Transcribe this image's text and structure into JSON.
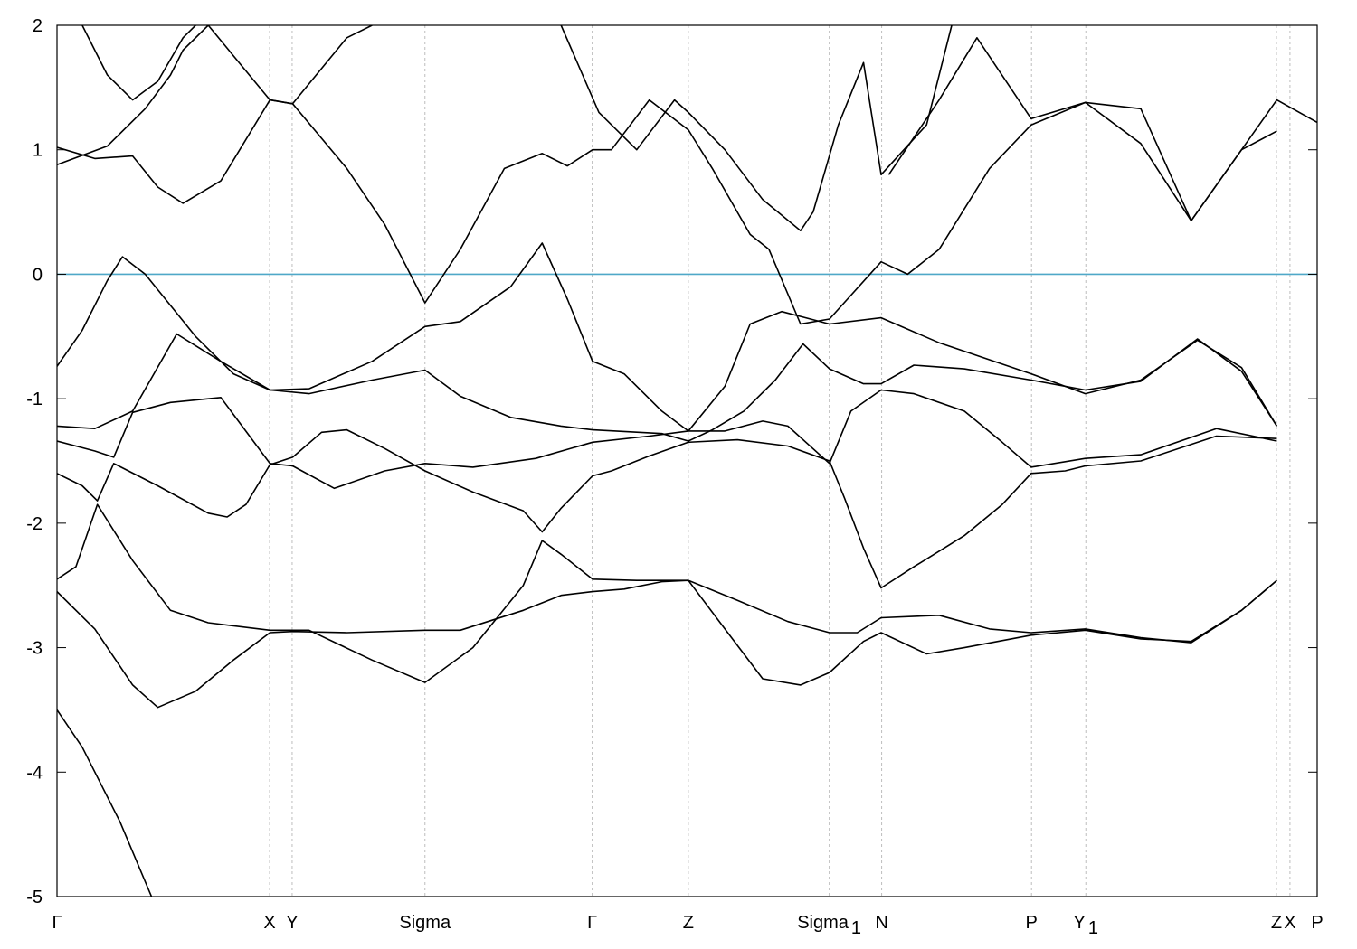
{
  "chart_data": {
    "type": "line",
    "xlim": [
      0,
      1
    ],
    "ylim": [
      -5,
      2
    ],
    "yticks": [
      -5,
      -4,
      -3,
      -2,
      -1,
      0,
      1,
      2
    ],
    "ytick_labels": [
      "-5",
      "-4",
      "-3",
      "-2",
      "-1",
      "0",
      "1",
      "2"
    ],
    "kpoints": [
      {
        "label": "Γ",
        "sub": "",
        "x": 0.0
      },
      {
        "label": "X",
        "sub": "",
        "x": 0.1687
      },
      {
        "label": "Y",
        "sub": "",
        "x": 0.1866
      },
      {
        "label": "Sigma",
        "sub": "",
        "x": 0.292
      },
      {
        "label": "Γ",
        "sub": "",
        "x": 0.4247
      },
      {
        "label": "Z",
        "sub": "",
        "x": 0.501
      },
      {
        "label": "Sigma",
        "sub": "1",
        "x": 0.6128
      },
      {
        "label": "N",
        "sub": "",
        "x": 0.6544
      },
      {
        "label": "P",
        "sub": "",
        "x": 0.7733
      },
      {
        "label": "Y",
        "sub": "1",
        "x": 0.8164
      },
      {
        "label": "Z",
        "sub": "",
        "x": 0.9677
      },
      {
        "label": "X",
        "sub": "",
        "x": 0.9784
      },
      {
        "label": "P",
        "sub": "",
        "x": 1.0
      }
    ],
    "fermi_level": 0,
    "fermi_color": "#4fa8c8",
    "band_color": "#000000",
    "series": [
      {
        "points": [
          [
            0.0,
            -3.5
          ],
          [
            0.02,
            -3.8
          ],
          [
            0.05,
            -4.4
          ],
          [
            0.075,
            -5.0
          ]
        ]
      },
      {
        "points": [
          [
            0.0,
            -2.55
          ],
          [
            0.03,
            -2.85
          ],
          [
            0.06,
            -3.3
          ],
          [
            0.08,
            -3.48
          ],
          [
            0.11,
            -3.35
          ],
          [
            0.14,
            -3.1
          ],
          [
            0.169,
            -2.88
          ],
          [
            0.187,
            -2.87
          ],
          [
            0.23,
            -2.88
          ],
          [
            0.292,
            -2.86
          ],
          [
            0.32,
            -2.86
          ],
          [
            0.37,
            -2.7
          ],
          [
            0.4,
            -2.58
          ],
          [
            0.425,
            -2.55
          ],
          [
            0.45,
            -2.53
          ],
          [
            0.48,
            -2.47
          ],
          [
            0.501,
            -2.46
          ],
          [
            0.54,
            -2.62
          ],
          [
            0.58,
            -2.79
          ],
          [
            0.613,
            -2.88
          ],
          [
            0.635,
            -2.88
          ],
          [
            0.654,
            -2.76
          ],
          [
            0.7,
            -2.74
          ],
          [
            0.74,
            -2.85
          ],
          [
            0.773,
            -2.88
          ],
          [
            0.816,
            -2.85
          ],
          [
            0.86,
            -2.92
          ],
          [
            0.9,
            -2.96
          ],
          [
            0.94,
            -2.7
          ],
          [
            0.968,
            -2.46
          ]
        ]
      },
      {
        "points": [
          [
            0.0,
            -2.45
          ],
          [
            0.015,
            -2.35
          ],
          [
            0.032,
            -1.85
          ],
          [
            0.06,
            -2.3
          ],
          [
            0.09,
            -2.7
          ],
          [
            0.12,
            -2.8
          ],
          [
            0.169,
            -2.86
          ],
          [
            0.2,
            -2.86
          ],
          [
            0.25,
            -3.1
          ],
          [
            0.292,
            -3.28
          ],
          [
            0.33,
            -3.0
          ],
          [
            0.37,
            -2.5
          ],
          [
            0.385,
            -2.14
          ],
          [
            0.4,
            -2.25
          ],
          [
            0.425,
            -2.45
          ],
          [
            0.46,
            -2.46
          ],
          [
            0.501,
            -2.46
          ],
          [
            0.53,
            -2.85
          ],
          [
            0.56,
            -3.25
          ],
          [
            0.59,
            -3.3
          ],
          [
            0.613,
            -3.2
          ],
          [
            0.64,
            -2.95
          ],
          [
            0.654,
            -2.88
          ],
          [
            0.69,
            -3.05
          ],
          [
            0.72,
            -3.0
          ],
          [
            0.773,
            -2.9
          ],
          [
            0.816,
            -2.86
          ],
          [
            0.86,
            -2.93
          ],
          [
            0.9,
            -2.95
          ],
          [
            0.94,
            -2.7
          ],
          [
            0.968,
            -2.46
          ]
        ]
      },
      {
        "points": [
          [
            0.0,
            -1.6
          ],
          [
            0.02,
            -1.7
          ],
          [
            0.032,
            -1.82
          ],
          [
            0.045,
            -1.52
          ],
          [
            0.08,
            -1.7
          ],
          [
            0.12,
            -1.92
          ],
          [
            0.135,
            -1.95
          ],
          [
            0.15,
            -1.85
          ],
          [
            0.169,
            -1.53
          ],
          [
            0.187,
            -1.47
          ],
          [
            0.21,
            -1.27
          ],
          [
            0.23,
            -1.25
          ],
          [
            0.26,
            -1.4
          ],
          [
            0.292,
            -1.58
          ],
          [
            0.33,
            -1.75
          ],
          [
            0.37,
            -1.9
          ],
          [
            0.385,
            -2.07
          ],
          [
            0.4,
            -1.88
          ],
          [
            0.425,
            -1.62
          ],
          [
            0.44,
            -1.58
          ],
          [
            0.47,
            -1.46
          ],
          [
            0.501,
            -1.35
          ],
          [
            0.54,
            -1.33
          ],
          [
            0.58,
            -1.38
          ],
          [
            0.613,
            -1.5
          ],
          [
            0.625,
            -1.8
          ],
          [
            0.64,
            -2.2
          ],
          [
            0.654,
            -2.52
          ],
          [
            0.68,
            -2.35
          ],
          [
            0.72,
            -2.1
          ],
          [
            0.75,
            -1.85
          ],
          [
            0.773,
            -1.6
          ],
          [
            0.8,
            -1.58
          ],
          [
            0.816,
            -1.54
          ],
          [
            0.86,
            -1.5
          ],
          [
            0.92,
            -1.3
          ],
          [
            0.968,
            -1.32
          ]
        ]
      },
      {
        "points": [
          [
            0.0,
            -1.34
          ],
          [
            0.03,
            -1.42
          ],
          [
            0.045,
            -1.47
          ],
          [
            0.06,
            -1.11
          ],
          [
            0.09,
            -1.03
          ],
          [
            0.13,
            -0.99
          ],
          [
            0.169,
            -1.52
          ],
          [
            0.187,
            -1.54
          ],
          [
            0.22,
            -1.72
          ],
          [
            0.26,
            -1.58
          ],
          [
            0.292,
            -1.52
          ],
          [
            0.33,
            -1.55
          ],
          [
            0.38,
            -1.48
          ],
          [
            0.425,
            -1.35
          ],
          [
            0.47,
            -1.3
          ],
          [
            0.501,
            -1.26
          ],
          [
            0.53,
            -1.26
          ],
          [
            0.56,
            -1.18
          ],
          [
            0.58,
            -1.22
          ],
          [
            0.613,
            -1.52
          ],
          [
            0.63,
            -1.1
          ],
          [
            0.654,
            -0.93
          ],
          [
            0.68,
            -0.96
          ],
          [
            0.72,
            -1.1
          ],
          [
            0.75,
            -1.35
          ],
          [
            0.773,
            -1.55
          ],
          [
            0.816,
            -1.48
          ],
          [
            0.86,
            -1.45
          ],
          [
            0.92,
            -1.24
          ],
          [
            0.968,
            -1.34
          ]
        ]
      },
      {
        "points": [
          [
            0.0,
            -1.22
          ],
          [
            0.03,
            -1.24
          ],
          [
            0.06,
            -1.1
          ],
          [
            0.095,
            -0.48
          ],
          [
            0.13,
            -0.7
          ],
          [
            0.169,
            -0.93
          ],
          [
            0.2,
            -0.96
          ],
          [
            0.25,
            -0.85
          ],
          [
            0.292,
            -0.77
          ],
          [
            0.32,
            -0.98
          ],
          [
            0.36,
            -1.15
          ],
          [
            0.4,
            -1.22
          ],
          [
            0.425,
            -1.25
          ],
          [
            0.48,
            -1.28
          ],
          [
            0.501,
            -1.34
          ],
          [
            0.52,
            -1.25
          ],
          [
            0.545,
            -1.1
          ],
          [
            0.57,
            -0.85
          ],
          [
            0.592,
            -0.56
          ],
          [
            0.613,
            -0.76
          ],
          [
            0.64,
            -0.88
          ],
          [
            0.654,
            -0.88
          ],
          [
            0.68,
            -0.73
          ],
          [
            0.72,
            -0.76
          ],
          [
            0.773,
            -0.85
          ],
          [
            0.816,
            -0.93
          ],
          [
            0.86,
            -0.86
          ],
          [
            0.905,
            -0.52
          ],
          [
            0.94,
            -0.78
          ],
          [
            0.968,
            -1.22
          ]
        ]
      },
      {
        "points": [
          [
            0.0,
            -0.74
          ],
          [
            0.02,
            -0.45
          ],
          [
            0.04,
            -0.05
          ],
          [
            0.052,
            0.14
          ],
          [
            0.07,
            0.0
          ],
          [
            0.11,
            -0.5
          ],
          [
            0.14,
            -0.8
          ],
          [
            0.169,
            -0.93
          ],
          [
            0.2,
            -0.92
          ],
          [
            0.25,
            -0.7
          ],
          [
            0.292,
            -0.42
          ],
          [
            0.32,
            -0.38
          ],
          [
            0.36,
            -0.1
          ],
          [
            0.385,
            0.25
          ],
          [
            0.405,
            -0.2
          ],
          [
            0.425,
            -0.7
          ],
          [
            0.45,
            -0.8
          ],
          [
            0.48,
            -1.1
          ],
          [
            0.501,
            -1.26
          ],
          [
            0.53,
            -0.9
          ],
          [
            0.55,
            -0.4
          ],
          [
            0.575,
            -0.3
          ],
          [
            0.613,
            -0.4
          ],
          [
            0.654,
            -0.35
          ],
          [
            0.7,
            -0.55
          ],
          [
            0.773,
            -0.8
          ],
          [
            0.816,
            -0.96
          ],
          [
            0.86,
            -0.85
          ],
          [
            0.905,
            -0.53
          ],
          [
            0.94,
            -0.75
          ],
          [
            0.968,
            -1.22
          ]
        ]
      },
      {
        "points": [
          [
            0.0,
            1.02
          ],
          [
            0.03,
            0.93
          ],
          [
            0.06,
            0.95
          ],
          [
            0.08,
            0.7
          ],
          [
            0.1,
            0.57
          ],
          [
            0.13,
            0.75
          ],
          [
            0.169,
            1.4
          ],
          [
            0.187,
            1.37
          ],
          [
            0.23,
            0.85
          ],
          [
            0.26,
            0.4
          ],
          [
            0.292,
            -0.23
          ],
          [
            0.32,
            0.2
          ],
          [
            0.355,
            0.85
          ],
          [
            0.385,
            0.97
          ],
          [
            0.405,
            0.87
          ],
          [
            0.425,
            1.0
          ],
          [
            0.44,
            1.0
          ],
          [
            0.47,
            1.4
          ],
          [
            0.501,
            1.16
          ],
          [
            0.52,
            0.85
          ],
          [
            0.55,
            0.32
          ],
          [
            0.565,
            0.2
          ],
          [
            0.59,
            -0.4
          ],
          [
            0.613,
            -0.36
          ],
          [
            0.654,
            0.1
          ],
          [
            0.675,
            0.0
          ],
          [
            0.7,
            0.2
          ],
          [
            0.74,
            0.85
          ],
          [
            0.773,
            1.2
          ],
          [
            0.816,
            1.38
          ],
          [
            0.86,
            1.05
          ],
          [
            0.9,
            0.43
          ],
          [
            0.94,
            1.0
          ],
          [
            0.968,
            1.15
          ]
        ]
      },
      {
        "points": [
          [
            0.0,
            0.88
          ],
          [
            0.04,
            1.03
          ],
          [
            0.07,
            1.33
          ],
          [
            0.09,
            1.6
          ],
          [
            0.1,
            1.8
          ],
          [
            0.12,
            2.0
          ]
        ]
      },
      {
        "points": [
          [
            0.02,
            2.0
          ],
          [
            0.04,
            1.6
          ],
          [
            0.06,
            1.4
          ],
          [
            0.08,
            1.55
          ],
          [
            0.1,
            1.9
          ],
          [
            0.11,
            2.0
          ]
        ]
      },
      {
        "points": [
          [
            0.12,
            2.0
          ],
          [
            0.169,
            1.4
          ],
          [
            0.187,
            1.37
          ],
          [
            0.23,
            1.9
          ],
          [
            0.25,
            2.0
          ]
        ]
      },
      {
        "points": [
          [
            0.4,
            2.0
          ],
          [
            0.43,
            1.3
          ],
          [
            0.46,
            1.0
          ],
          [
            0.49,
            1.4
          ],
          [
            0.501,
            1.3
          ],
          [
            0.53,
            1.0
          ],
          [
            0.56,
            0.6
          ],
          [
            0.59,
            0.35
          ],
          [
            0.6,
            0.5
          ],
          [
            0.62,
            1.2
          ],
          [
            0.64,
            1.7
          ],
          [
            0.654,
            0.8
          ],
          [
            0.69,
            1.2
          ],
          [
            0.71,
            2.0
          ]
        ]
      },
      {
        "points": [
          [
            0.66,
            0.8
          ],
          [
            0.7,
            1.4
          ],
          [
            0.73,
            1.9
          ],
          [
            0.773,
            1.25
          ],
          [
            0.816,
            1.38
          ],
          [
            0.86,
            1.33
          ],
          [
            0.9,
            0.43
          ],
          [
            0.94,
            1.0
          ],
          [
            0.968,
            1.4
          ],
          [
            1.0,
            1.22
          ]
        ]
      }
    ]
  }
}
